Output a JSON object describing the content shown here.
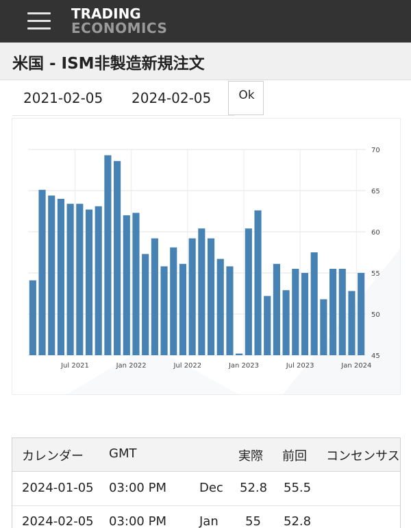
{
  "header": {
    "menu_icon": "hamburger-menu-icon",
    "logo_line1": "TRADING",
    "logo_line2": "ECONOMICS"
  },
  "page_title": "米国 - ISM非製造新規注文",
  "date_range": {
    "start": "2021-02-05",
    "end": "2024-02-05",
    "ok_label": "Ok"
  },
  "chart_data": {
    "type": "bar",
    "color": "#4682b4",
    "ylim": [
      45,
      70
    ],
    "yticks": [
      45,
      50,
      55,
      60,
      65,
      70
    ],
    "grid": true,
    "x_tick_labels": [
      "Jul 2021",
      "Jan 2022",
      "Jul 2022",
      "Jan 2023",
      "Jul 2023",
      "Jan 2024"
    ],
    "x_tick_indices": [
      5,
      11,
      17,
      23,
      29,
      35
    ],
    "values": [
      54.1,
      65.1,
      64.4,
      64.0,
      63.4,
      63.4,
      62.7,
      63.1,
      69.3,
      68.6,
      62.0,
      62.3,
      57.3,
      59.2,
      55.8,
      58.1,
      56.1,
      59.2,
      60.4,
      59.2,
      56.7,
      55.8,
      45.2,
      60.4,
      62.6,
      52.2,
      56.1,
      52.9,
      55.5,
      55.0,
      57.5,
      51.8,
      55.5,
      55.5,
      52.8,
      55.0
    ]
  },
  "table": {
    "headers": [
      "カレンダー",
      "GMT",
      "",
      "実際",
      "前回",
      "コンセンサス"
    ],
    "rows": [
      [
        "2024-01-05",
        "03:00 PM",
        "Dec",
        "52.8",
        "55.5",
        ""
      ],
      [
        "2024-02-05",
        "03:00 PM",
        "Jan",
        "55",
        "52.8",
        ""
      ]
    ]
  }
}
